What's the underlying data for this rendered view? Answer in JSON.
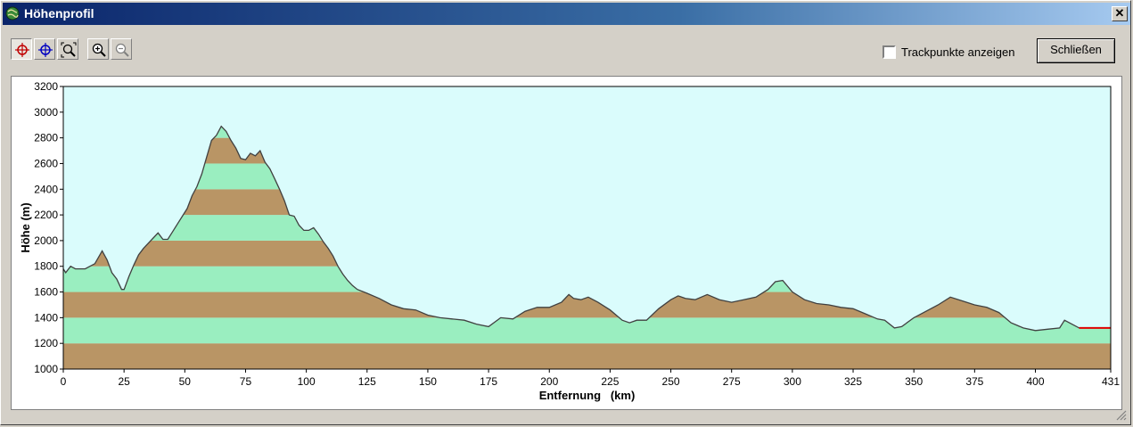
{
  "window": {
    "title": "Höhenprofil",
    "close_glyph": "✕"
  },
  "toolbar": {
    "buttons": [
      {
        "icon": "crosshair-red-icon",
        "pressed": true
      },
      {
        "icon": "crosshair-blue-icon",
        "pressed": false
      },
      {
        "icon": "zoom-select-icon",
        "pressed": false
      },
      {
        "icon": "zoom-in-icon",
        "pressed": false
      },
      {
        "icon": "zoom-out-icon",
        "pressed": false
      }
    ]
  },
  "options": {
    "trackpoints_label": "Trackpunkte anzeigen",
    "trackpoints_checked": false
  },
  "actions": {
    "close_label": "Schließen"
  },
  "colors": {
    "sky": "#dafcfc",
    "band_brown": "#b99565",
    "band_green": "#9aeec0",
    "profile_line": "#404040",
    "marker": "#e00000"
  },
  "chart_data": {
    "type": "area",
    "xlabel": "Entfernung   (km)",
    "ylabel": "Höhe (m)",
    "xlim": [
      0,
      431
    ],
    "ylim": [
      1000,
      3200
    ],
    "x_ticks": [
      0,
      25,
      50,
      75,
      100,
      125,
      150,
      175,
      200,
      225,
      250,
      275,
      300,
      325,
      350,
      375,
      400,
      431
    ],
    "y_ticks": [
      1000,
      1200,
      1400,
      1600,
      1800,
      2000,
      2200,
      2400,
      2600,
      2800,
      3000,
      3200
    ],
    "band_step": 200,
    "marker_segment": {
      "x": [
        418,
        431
      ],
      "y": 1320
    },
    "x": [
      0,
      1,
      3,
      5,
      9,
      13,
      16,
      18,
      20,
      22,
      24,
      25,
      27,
      29,
      31,
      33,
      35,
      37,
      39,
      41,
      43,
      45,
      47,
      49,
      51,
      53,
      55,
      57,
      59,
      61,
      63,
      65,
      67,
      69,
      71,
      73,
      75,
      77,
      79,
      81,
      83,
      85,
      87,
      89,
      91,
      93,
      95,
      97,
      99,
      101,
      103,
      105,
      107,
      109,
      111,
      113,
      115,
      117,
      119,
      121,
      125,
      130,
      135,
      140,
      145,
      150,
      155,
      160,
      165,
      170,
      175,
      180,
      185,
      190,
      195,
      200,
      205,
      208,
      210,
      213,
      216,
      220,
      225,
      230,
      233,
      236,
      240,
      245,
      250,
      253,
      256,
      260,
      265,
      270,
      275,
      280,
      285,
      290,
      293,
      296,
      300,
      305,
      310,
      315,
      320,
      325,
      330,
      335,
      338,
      342,
      345,
      350,
      355,
      360,
      365,
      370,
      375,
      380,
      385,
      390,
      395,
      400,
      405,
      410,
      412,
      415,
      418,
      431
    ],
    "y": [
      1780,
      1750,
      1800,
      1780,
      1780,
      1820,
      1920,
      1850,
      1750,
      1700,
      1620,
      1620,
      1720,
      1810,
      1890,
      1940,
      1980,
      2020,
      2060,
      2010,
      2010,
      2070,
      2130,
      2190,
      2250,
      2350,
      2420,
      2520,
      2650,
      2780,
      2820,
      2890,
      2850,
      2780,
      2720,
      2640,
      2630,
      2680,
      2660,
      2700,
      2610,
      2560,
      2480,
      2400,
      2310,
      2200,
      2190,
      2120,
      2080,
      2080,
      2100,
      2050,
      1990,
      1940,
      1880,
      1800,
      1740,
      1690,
      1650,
      1620,
      1590,
      1550,
      1500,
      1470,
      1460,
      1420,
      1400,
      1390,
      1380,
      1350,
      1330,
      1400,
      1390,
      1450,
      1480,
      1480,
      1520,
      1580,
      1550,
      1540,
      1560,
      1520,
      1460,
      1380,
      1360,
      1380,
      1380,
      1470,
      1540,
      1570,
      1550,
      1540,
      1580,
      1540,
      1520,
      1540,
      1560,
      1620,
      1680,
      1690,
      1600,
      1540,
      1510,
      1500,
      1480,
      1470,
      1430,
      1390,
      1380,
      1320,
      1330,
      1400,
      1450,
      1500,
      1560,
      1530,
      1500,
      1480,
      1440,
      1360,
      1320,
      1300,
      1310,
      1320,
      1380,
      1350,
      1320,
      1320
    ]
  }
}
